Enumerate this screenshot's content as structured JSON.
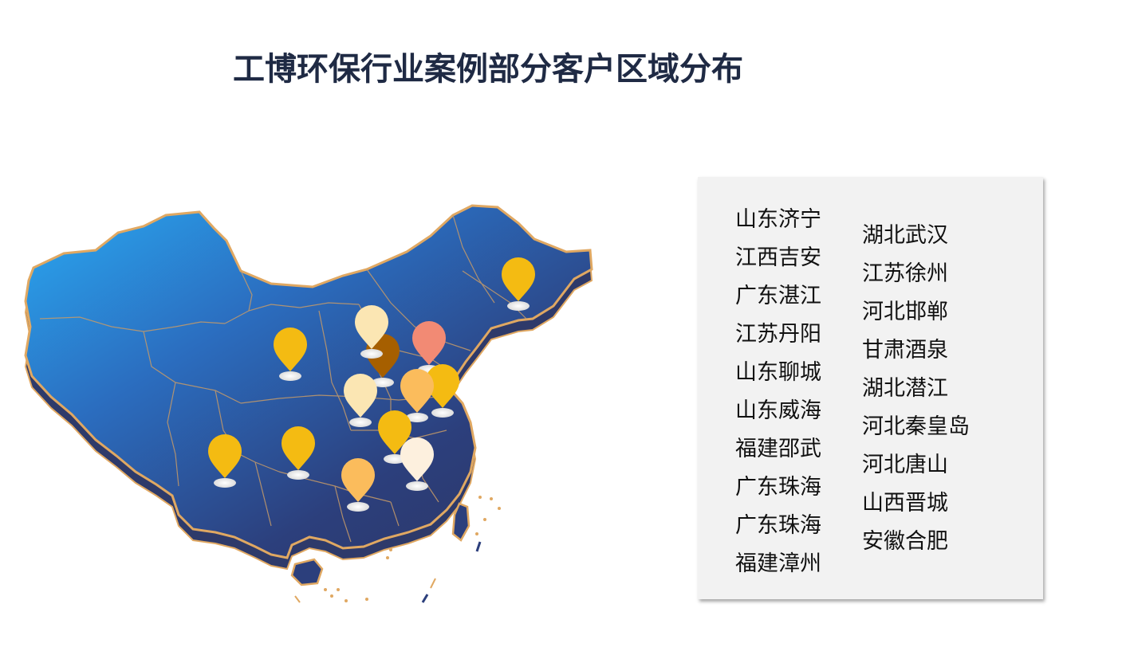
{
  "title": "工博环保行业案例部分客户区域分布",
  "colors": {
    "title": "#1f2a44",
    "map_fill_light": "#2aa9f2",
    "map_fill_dark": "#2c3566",
    "map_border": "#e0a862",
    "panel_bg": "#f2f2f2"
  },
  "customer_regions": {
    "left_column": [
      "山东济宁",
      "江西吉安",
      "广东湛江",
      "江苏丹阳",
      "山东聊城",
      "山东威海",
      "福建邵武",
      "广东珠海",
      "广东珠海",
      "福建漳州"
    ],
    "right_column": [
      "湖北武汉",
      "江苏徐州",
      "河北邯郸",
      "甘肃酒泉",
      "湖北潜江",
      "河北秦皇岛",
      "河北唐山",
      "山西晋城",
      "安徽合肥"
    ]
  },
  "map_markers": [
    {
      "name": "marker-heilongjiang",
      "color": "#f4bb12"
    },
    {
      "name": "marker-gansu",
      "color": "#f4bb12"
    },
    {
      "name": "marker-inner-mongolia",
      "color": "#fbe6b3"
    },
    {
      "name": "marker-shanxi",
      "color": "#a65f00"
    },
    {
      "name": "marker-hebei",
      "color": "#f28a74"
    },
    {
      "name": "marker-shaanxi",
      "color": "#fbe6b3"
    },
    {
      "name": "marker-henan",
      "color": "#fbbc5c"
    },
    {
      "name": "marker-shandong",
      "color": "#f4bb12"
    },
    {
      "name": "marker-hubei",
      "color": "#f4bb12"
    },
    {
      "name": "marker-anhui",
      "color": "#fdf0de"
    },
    {
      "name": "marker-yunnan",
      "color": "#f4bb12"
    },
    {
      "name": "marker-guizhou",
      "color": "#f4bb12"
    },
    {
      "name": "marker-hunan",
      "color": "#fbbc5c"
    }
  ]
}
